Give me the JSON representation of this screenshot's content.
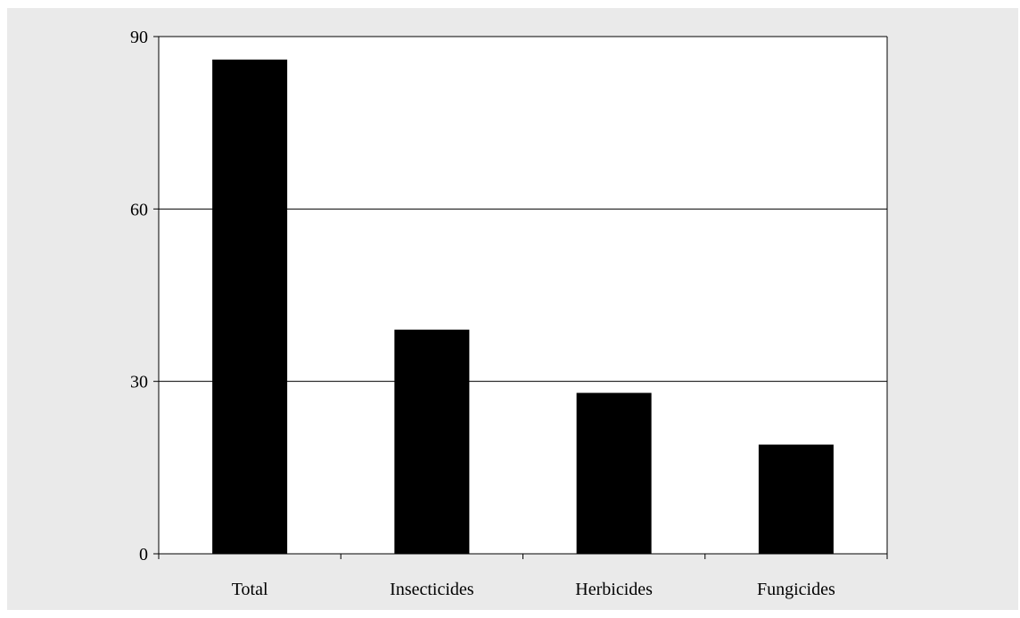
{
  "chart_data": {
    "type": "bar",
    "title": "",
    "xlabel": "",
    "ylabel": "",
    "categories": [
      "Total",
      "Insecticides",
      "Herbicides",
      "Fungicides"
    ],
    "values": [
      86,
      39,
      28,
      19
    ],
    "ylim": [
      0,
      90
    ],
    "yticks": [
      "0",
      "30",
      "60",
      "90"
    ],
    "grid": true,
    "legend": "none",
    "colors": {
      "bar": "#000000",
      "plot_background": "#ffffff",
      "frame_background": "#eaeaea",
      "grid": "#000000"
    }
  }
}
